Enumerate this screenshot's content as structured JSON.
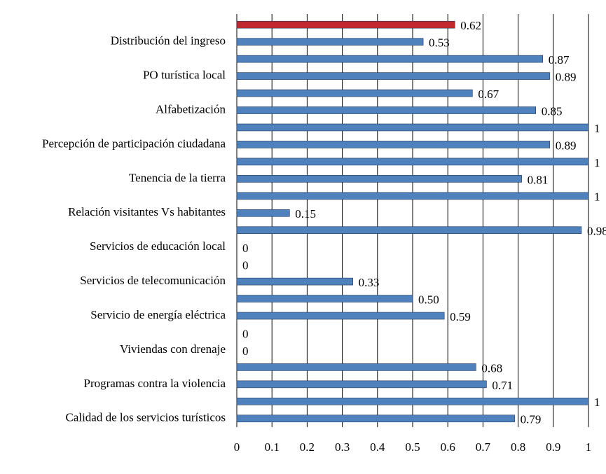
{
  "chart_data": {
    "type": "hbar",
    "categories": [
      null,
      "Distribución del ingreso",
      null,
      "PO turística local",
      null,
      "Alfabetización",
      null,
      "Percepción de participación ciudadana",
      null,
      "Tenencia de la tierra",
      null,
      "Relación visitantes Vs habitantes",
      null,
      "Servicios de educación local",
      null,
      "Servicios de telecomunicación",
      null,
      "Servicio de energía eléctrica",
      null,
      "Viviendas con drenaje",
      null,
      "Programas contra la violencia",
      null,
      "Calidad de los servicios turísticos"
    ],
    "values": [
      0.62,
      0.53,
      0.87,
      0.89,
      0.67,
      0.85,
      1,
      0.89,
      1,
      0.81,
      1,
      0.15,
      0.98,
      0,
      0,
      0.33,
      0.5,
      0.59,
      0,
      0,
      0.68,
      0.71,
      1,
      0.79
    ],
    "value_labels": [
      "0.62",
      "0.53",
      "0.87",
      "0.89",
      "0.67",
      "0.85",
      "1",
      "0.89",
      "1",
      "0.81",
      "1",
      "0.15",
      "0.98",
      "0",
      "0",
      "0.33",
      "0.50",
      "0.59",
      "0",
      "0",
      "0.68",
      "0.71",
      "1",
      "0.79"
    ],
    "colors": [
      "#c0282d",
      "#4f81bd",
      "#4f81bd",
      "#4f81bd",
      "#4f81bd",
      "#4f81bd",
      "#4f81bd",
      "#4f81bd",
      "#4f81bd",
      "#4f81bd",
      "#4f81bd",
      "#4f81bd",
      "#4f81bd",
      "#4f81bd",
      "#4f81bd",
      "#4f81bd",
      "#4f81bd",
      "#4f81bd",
      "#4f81bd",
      "#4f81bd",
      "#4f81bd",
      "#4f81bd",
      "#4f81bd",
      "#4f81bd"
    ],
    "xlim": [
      0,
      1
    ],
    "xticks": [
      0,
      0.1,
      0.2,
      0.3,
      0.4,
      0.5,
      0.6,
      0.7,
      0.8,
      0.9,
      1
    ],
    "grid": true
  }
}
